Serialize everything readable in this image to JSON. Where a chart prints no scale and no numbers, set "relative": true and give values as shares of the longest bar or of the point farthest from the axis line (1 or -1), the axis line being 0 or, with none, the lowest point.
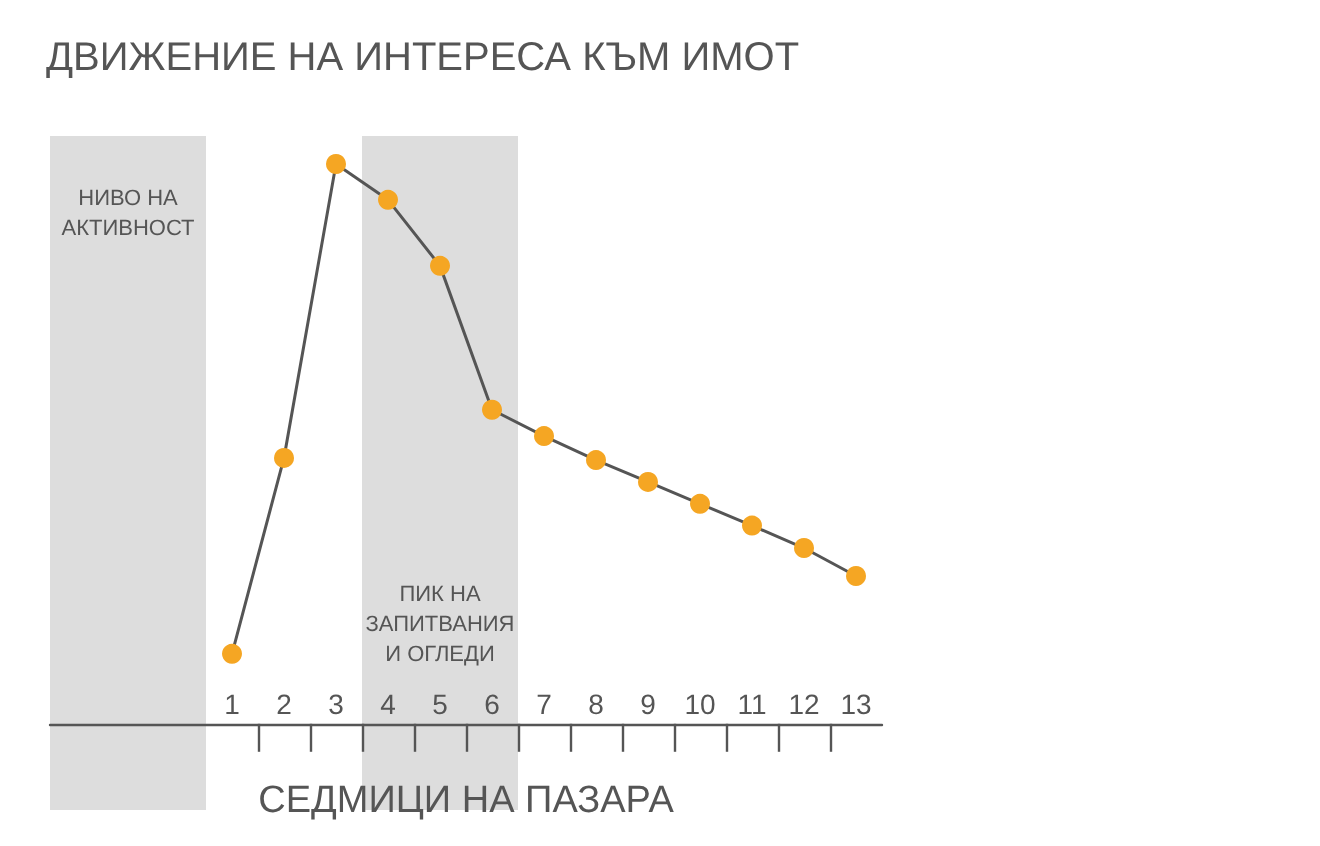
{
  "chart_data": {
    "type": "line",
    "title": "ДВИЖЕНИЕ НА ИНТЕРЕСА КЪМ ИМОТ",
    "xlabel": "СЕДМИЦИ НА ПАЗАРА",
    "relative": true,
    "x": [
      1,
      2,
      3,
      4,
      5,
      6,
      7,
      8,
      9,
      10,
      11,
      12,
      13
    ],
    "series": [
      {
        "color": "#555555",
        "colors": [
          "#f5a623",
          "#f5a623",
          "#f5a623",
          "#f5a623",
          "#f5a623",
          "#f5a623",
          "#f5a623",
          "#f5a623",
          "#f5a623",
          "#f5a623",
          "#f5a623",
          "#f5a623",
          "#f5a623"
        ],
        "values": [
          0.125,
          0.475,
          1,
          0.936,
          0.818,
          0.561,
          0.514,
          0.471,
          0.432,
          0.393,
          0.354,
          0.314,
          0.264
        ]
      }
    ],
    "xlim": [
      -2.5,
      13.5
    ],
    "xticks": [
      1,
      2,
      3,
      4,
      5,
      6,
      7,
      8,
      9,
      10,
      11,
      12,
      13,
      {
        "value": 1.5,
        "label": null
      },
      {
        "value": 2.5,
        "label": null
      },
      {
        "value": 3.5,
        "label": null
      },
      {
        "value": 4.5,
        "label": null
      },
      {
        "value": 5.5,
        "label": null
      },
      {
        "value": 6.5,
        "label": null
      },
      {
        "value": 7.5,
        "label": null
      },
      {
        "value": 8.5,
        "label": null
      },
      {
        "value": 9.5,
        "label": null
      },
      {
        "value": 10.5,
        "label": null
      },
      {
        "value": 11.5,
        "label": null
      },
      {
        "value": 12.5,
        "label": null
      }
    ],
    "bands": [
      {
        "axis": "x",
        "from": -2.5,
        "to": 0.5,
        "label": "НИВО НА\nАКТИВНОСТ",
        "color": "#dddddd"
      },
      {
        "axis": "x",
        "from": 3.5,
        "to": 6.5,
        "label": "ПИК НА\nЗАПИТВАНИЯ\nИ ОГЛЕДИ",
        "color": "#dddddd"
      }
    ],
    "marker": "circle",
    "line_style": "solid",
    "grid": false
  }
}
